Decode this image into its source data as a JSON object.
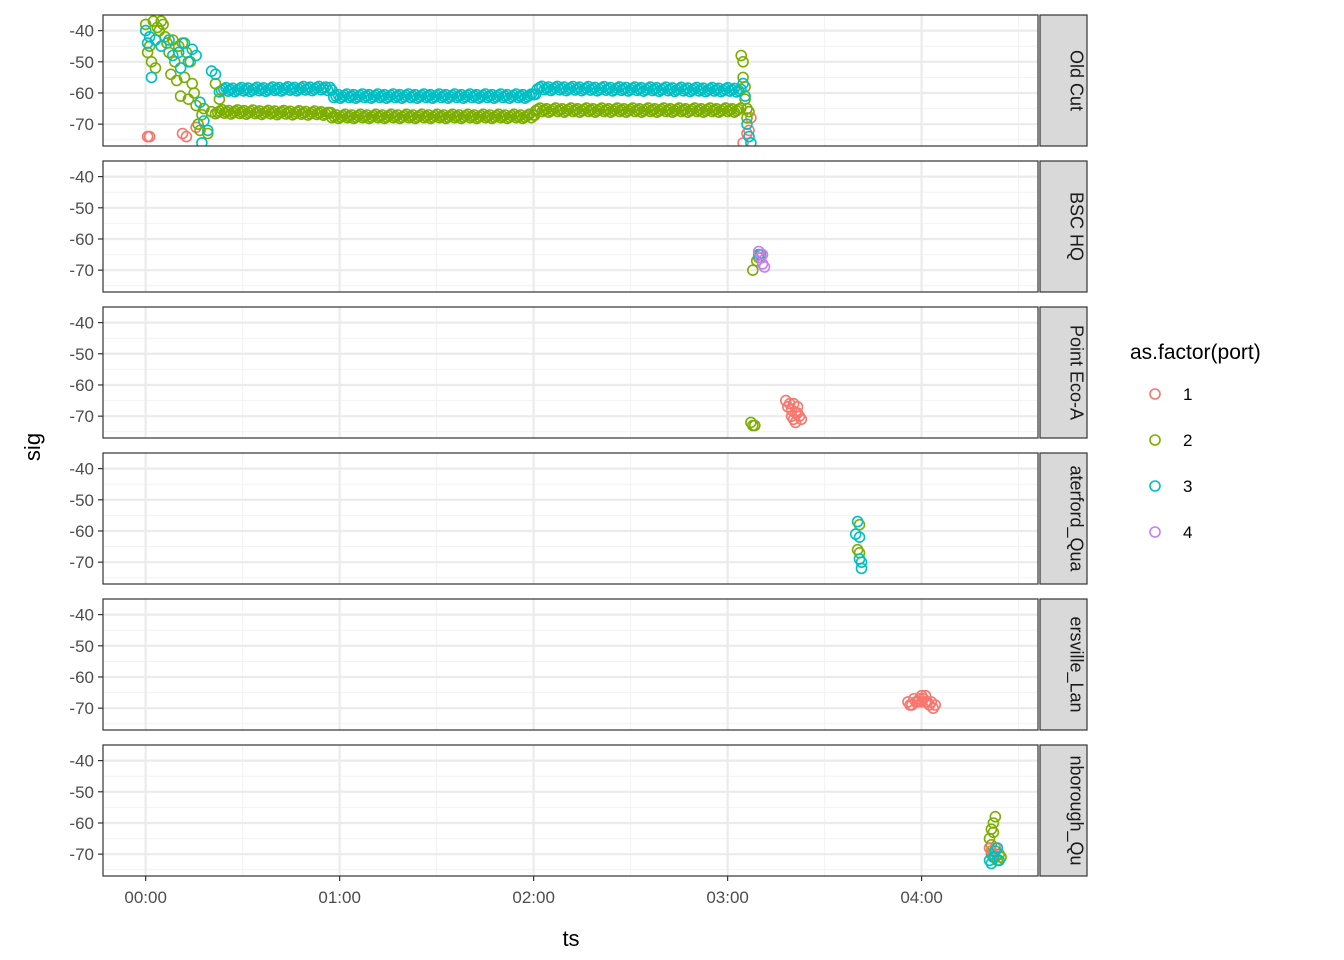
{
  "chart_data": {
    "type": "scatter",
    "facet": "rows",
    "xlabel": "ts",
    "ylabel": "sig",
    "xlim": [
      -0.22,
      4.6
    ],
    "ylim": [
      -77,
      -35
    ],
    "x_unit": "hours",
    "x_ticks": [
      0,
      1,
      2,
      3,
      4
    ],
    "x_tick_labels": [
      "00:00",
      "01:00",
      "02:00",
      "03:00",
      "04:00"
    ],
    "y_ticks": [
      -40,
      -50,
      -60,
      -70
    ],
    "y_tick_labels": [
      "-40",
      "-50",
      "-60",
      "-70"
    ],
    "grid": true,
    "legend": {
      "title": "as.factor(port)",
      "position": "right",
      "entries": [
        {
          "label": "1",
          "color": "#F8766D"
        },
        {
          "label": "2",
          "color": "#7CAE00"
        },
        {
          "label": "3",
          "color": "#00BFC4"
        },
        {
          "label": "4",
          "color": "#C77CFF"
        }
      ]
    },
    "panels": [
      {
        "strip": "Old Cut",
        "series": [
          {
            "port": "1",
            "points": [
              [
                0.01,
                -74
              ],
              [
                0.02,
                -74
              ],
              [
                0.19,
                -73
              ],
              [
                0.21,
                -74
              ],
              [
                0.26,
                -71
              ],
              [
                3.08,
                -76
              ],
              [
                3.1,
                -73
              ],
              [
                3.11,
                -72
              ],
              [
                3.12,
                -68
              ]
            ]
          },
          {
            "port": "2",
            "points": [
              [
                0.0,
                -38
              ],
              [
                0.01,
                -47
              ],
              [
                0.02,
                -45
              ],
              [
                0.03,
                -50
              ],
              [
                0.04,
                -37
              ],
              [
                0.05,
                -52
              ],
              [
                0.06,
                -39
              ],
              [
                0.07,
                -40
              ],
              [
                0.08,
                -37
              ],
              [
                0.09,
                -38
              ],
              [
                0.1,
                -42
              ],
              [
                0.11,
                -44
              ],
              [
                0.12,
                -47
              ],
              [
                0.13,
                -54
              ],
              [
                0.14,
                -43
              ],
              [
                0.15,
                -50
              ],
              [
                0.16,
                -56
              ],
              [
                0.17,
                -45
              ],
              [
                0.18,
                -61
              ],
              [
                0.19,
                -44
              ],
              [
                0.2,
                -55
              ],
              [
                0.21,
                -47
              ],
              [
                0.22,
                -62
              ],
              [
                0.23,
                -50
              ],
              [
                0.24,
                -57
              ],
              [
                0.25,
                -60
              ],
              [
                0.26,
                -64
              ],
              [
                0.27,
                -70
              ],
              [
                0.28,
                -72
              ],
              [
                0.29,
                -67
              ],
              [
                0.3,
                -65
              ],
              [
                0.32,
                -73
              ],
              [
                0.34,
                -66
              ],
              [
                0.36,
                -57
              ],
              [
                0.38,
                -62
              ],
              [
                3.07,
                -48
              ],
              [
                3.08,
                -50
              ],
              [
                3.08,
                -55
              ],
              [
                3.09,
                -58
              ],
              [
                3.09,
                -62
              ],
              [
                3.1,
                -65
              ],
              [
                3.1,
                -68
              ],
              [
                3.11,
                -66
              ]
            ]
          },
          {
            "port": "3",
            "points": [
              [
                0.0,
                -40
              ],
              [
                0.01,
                -44
              ],
              [
                0.02,
                -42
              ],
              [
                0.03,
                -55
              ],
              [
                0.05,
                -43
              ],
              [
                0.08,
                -45
              ],
              [
                0.12,
                -43
              ],
              [
                0.14,
                -48
              ],
              [
                0.17,
                -47
              ],
              [
                0.18,
                -52
              ],
              [
                0.2,
                -44
              ],
              [
                0.22,
                -50
              ],
              [
                0.24,
                -46
              ],
              [
                0.26,
                -48
              ],
              [
                0.28,
                -63
              ],
              [
                0.29,
                -76
              ],
              [
                0.3,
                -69
              ],
              [
                0.32,
                -72
              ],
              [
                0.34,
                -53
              ],
              [
                0.36,
                -54
              ],
              [
                3.08,
                -57
              ],
              [
                3.09,
                -61
              ],
              [
                3.1,
                -70
              ],
              [
                3.11,
                -74
              ],
              [
                3.12,
                -76
              ]
            ]
          }
        ],
        "bands": [
          {
            "port": "2",
            "segments": [
              [
                0.36,
                -66
              ],
              [
                0.95,
                -66.5
              ],
              [
                0.96,
                -67.5
              ],
              [
                2.0,
                -67.5
              ],
              [
                2.01,
                -65.5
              ],
              [
                3.08,
                -65.5
              ]
            ]
          },
          {
            "port": "3",
            "segments": [
              [
                0.38,
                -59
              ],
              [
                0.95,
                -58.5
              ],
              [
                0.97,
                -61
              ],
              [
                2.0,
                -61
              ],
              [
                2.02,
                -58.5
              ],
              [
                3.08,
                -59
              ]
            ]
          }
        ]
      },
      {
        "strip": "BSC HQ",
        "series": [
          {
            "port": "2",
            "points": [
              [
                3.13,
                -70
              ],
              [
                3.15,
                -67
              ],
              [
                3.16,
                -66
              ],
              [
                3.17,
                -65
              ]
            ]
          },
          {
            "port": "3",
            "points": [
              [
                3.16,
                -65
              ]
            ]
          },
          {
            "port": "4",
            "points": [
              [
                3.16,
                -64
              ],
              [
                3.17,
                -66
              ],
              [
                3.18,
                -68
              ],
              [
                3.19,
                -69
              ],
              [
                3.18,
                -65
              ]
            ]
          }
        ],
        "bands": []
      },
      {
        "strip": "Point Eco-A",
        "series": [
          {
            "port": "2",
            "points": [
              [
                3.12,
                -72
              ],
              [
                3.13,
                -73
              ],
              [
                3.14,
                -73
              ]
            ]
          },
          {
            "port": "1",
            "points": [
              [
                3.3,
                -65
              ],
              [
                3.31,
                -67
              ],
              [
                3.32,
                -66
              ],
              [
                3.33,
                -68
              ],
              [
                3.33,
                -70
              ],
              [
                3.34,
                -71
              ],
              [
                3.35,
                -72
              ],
              [
                3.36,
                -69
              ],
              [
                3.37,
                -70
              ],
              [
                3.38,
                -71
              ],
              [
                3.34,
                -66
              ],
              [
                3.36,
                -67
              ],
              [
                3.35,
                -69
              ]
            ]
          }
        ],
        "bands": []
      },
      {
        "strip": "aterford_Qua",
        "series": [
          {
            "port": "2",
            "points": [
              [
                3.67,
                -66
              ],
              [
                3.68,
                -67
              ],
              [
                3.68,
                -58
              ]
            ]
          },
          {
            "port": "3",
            "points": [
              [
                3.66,
                -61
              ],
              [
                3.67,
                -57
              ],
              [
                3.68,
                -69
              ],
              [
                3.69,
                -70
              ],
              [
                3.69,
                -72
              ],
              [
                3.68,
                -62
              ]
            ]
          }
        ],
        "bands": []
      },
      {
        "strip": "ersville_Lan",
        "series": [
          {
            "port": "1",
            "points": [
              [
                3.93,
                -68
              ],
              [
                3.94,
                -69
              ],
              [
                3.96,
                -67
              ],
              [
                3.98,
                -68
              ],
              [
                3.99,
                -67
              ],
              [
                4.0,
                -66
              ],
              [
                4.01,
                -67
              ],
              [
                4.02,
                -66
              ],
              [
                4.03,
                -68
              ],
              [
                4.04,
                -69
              ],
              [
                4.05,
                -68
              ],
              [
                4.06,
                -70
              ],
              [
                4.07,
                -69
              ],
              [
                3.97,
                -68
              ],
              [
                4.02,
                -68
              ],
              [
                3.95,
                -69
              ],
              [
                4.0,
                -68
              ]
            ]
          }
        ],
        "bands": []
      },
      {
        "strip": "nborough_Qu",
        "series": [
          {
            "port": "2",
            "points": [
              [
                4.35,
                -65
              ],
              [
                4.36,
                -62
              ],
              [
                4.37,
                -60
              ],
              [
                4.38,
                -58
              ],
              [
                4.37,
                -63
              ],
              [
                4.36,
                -67
              ],
              [
                4.38,
                -71
              ],
              [
                4.39,
                -72
              ],
              [
                4.4,
                -70
              ],
              [
                4.41,
                -71
              ],
              [
                4.36,
                -70
              ]
            ]
          },
          {
            "port": "1",
            "points": [
              [
                4.35,
                -68
              ],
              [
                4.36,
                -69
              ],
              [
                4.37,
                -70
              ],
              [
                4.38,
                -68
              ]
            ]
          },
          {
            "port": "3",
            "points": [
              [
                4.35,
                -72
              ],
              [
                4.36,
                -73
              ],
              [
                4.37,
                -71
              ],
              [
                4.38,
                -69
              ],
              [
                4.39,
                -68
              ],
              [
                4.4,
                -72
              ]
            ]
          }
        ],
        "bands": []
      }
    ]
  }
}
